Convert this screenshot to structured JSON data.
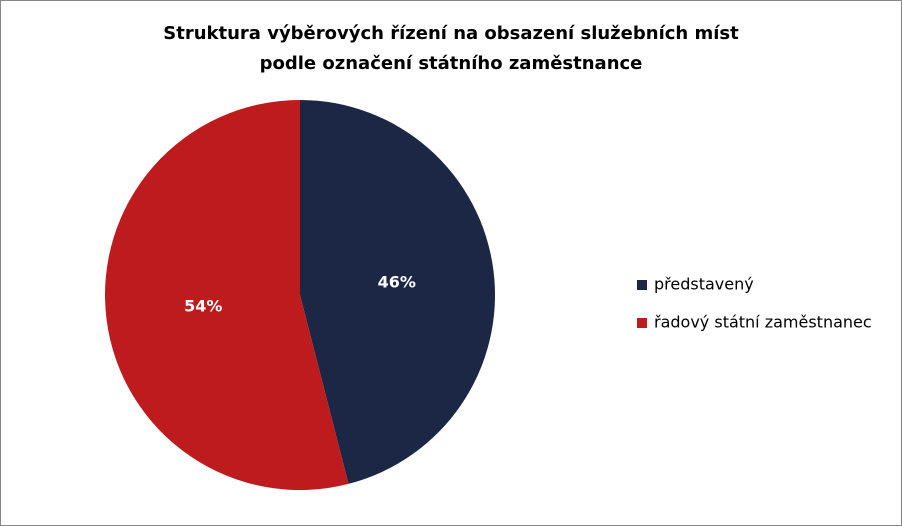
{
  "chart_data": {
    "type": "pie",
    "title": [
      "Struktura výběrových řízení na obsazení služebních míst",
      "podle označení státního zaměstnance"
    ],
    "categories": [
      "představený",
      "řadový státní zaměstnanec"
    ],
    "values": [
      46,
      54
    ],
    "value_labels": [
      "46%",
      "54%"
    ],
    "colors": [
      "#1b2744",
      "#be1b1f"
    ],
    "legend": "right"
  }
}
